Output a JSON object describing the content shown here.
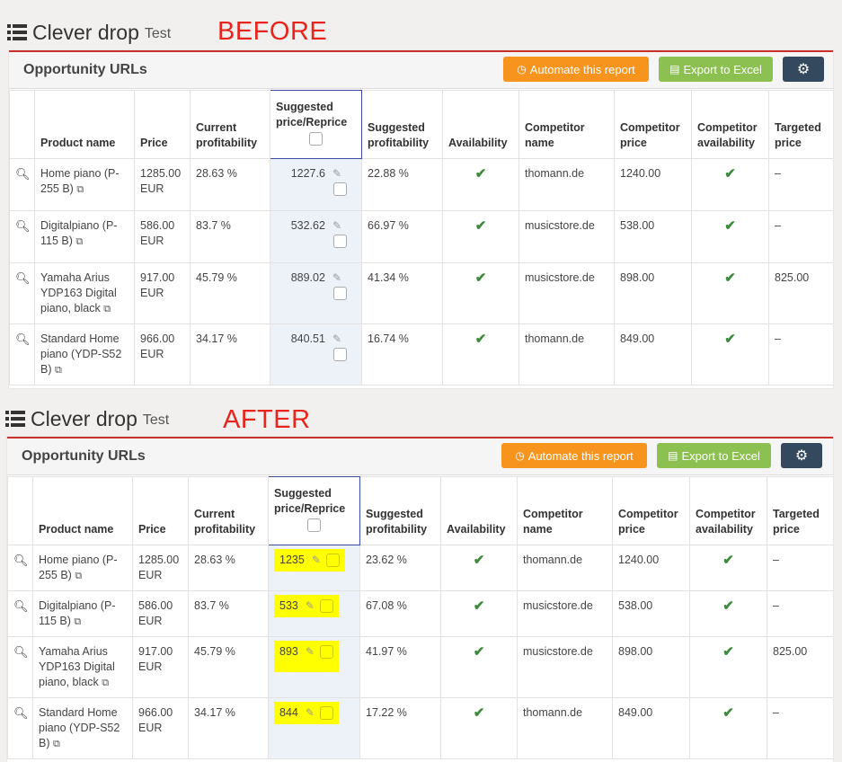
{
  "sections": [
    {
      "tag": "BEFORE",
      "app_title": "Clever drop",
      "app_subtitle": "Test",
      "panel_title": "Opportunity URLs",
      "automate_label": "Automate this report",
      "export_label": "Export to Excel",
      "headers": {
        "product": "Product name",
        "price": "Price",
        "current": "Current profitability",
        "suggested": "Suggested price/Reprice",
        "sugprof": "Suggested profitability",
        "availability": "Availability",
        "competitor": "Competitor name",
        "comp_price": "Competitor price",
        "comp_avail": "Competitor availability",
        "targeted": "Targeted price"
      },
      "rows": [
        {
          "product": "Home piano (P-255 B)",
          "price": "1285.00 EUR",
          "current": "28.63 %",
          "suggested": "1227.6",
          "sugprof": "22.88 %",
          "competitor": "thomann.de",
          "comp_price": "1240.00",
          "targeted": "–"
        },
        {
          "product": "Digitalpiano (P-115 B)",
          "price": "586.00 EUR",
          "current": "83.7 %",
          "suggested": "532.62",
          "sugprof": "66.97 %",
          "competitor": "musicstore.de",
          "comp_price": "538.00",
          "targeted": "–"
        },
        {
          "product": "Yamaha Arius YDP163 Digital piano, black",
          "price": "917.00 EUR",
          "current": "45.79 %",
          "suggested": "889.02",
          "sugprof": "41.34 %",
          "competitor": "musicstore.de",
          "comp_price": "898.00",
          "targeted": "825.00"
        },
        {
          "product": "Standard Home piano (YDP-S52 B)",
          "price": "966.00 EUR",
          "current": "34.17 %",
          "suggested": "840.51",
          "sugprof": "16.74 %",
          "competitor": "thomann.de",
          "comp_price": "849.00",
          "targeted": "–"
        }
      ]
    },
    {
      "tag": "AFTER",
      "app_title": "Clever drop",
      "app_subtitle": "Test",
      "panel_title": "Opportunity URLs",
      "automate_label": "Automate this report",
      "export_label": "Export to Excel",
      "headers": {
        "product": "Product name",
        "price": "Price",
        "current": "Current profitability",
        "suggested": "Suggested price/Reprice",
        "sugprof": "Suggested profitability",
        "availability": "Availability",
        "competitor": "Competitor name",
        "comp_price": "Competitor price",
        "comp_avail": "Competitor availability",
        "targeted": "Targeted price"
      },
      "rows": [
        {
          "product": "Home piano (P-255 B)",
          "price": "1285.00 EUR",
          "current": "28.63 %",
          "suggested": "1235",
          "sugprof": "23.62 %",
          "competitor": "thomann.de",
          "comp_price": "1240.00",
          "targeted": "–"
        },
        {
          "product": "Digitalpiano (P-115 B)",
          "price": "586.00 EUR",
          "current": "83.7 %",
          "suggested": "533",
          "sugprof": "67.08 %",
          "competitor": "musicstore.de",
          "comp_price": "538.00",
          "targeted": "–"
        },
        {
          "product": "Yamaha Arius YDP163 Digital piano, black",
          "price": "917.00 EUR",
          "current": "45.79 %",
          "suggested": "893",
          "sugprof": "41.97 %",
          "competitor": "musicstore.de",
          "comp_price": "898.00",
          "targeted": "825.00"
        },
        {
          "product": "Standard Home piano (YDP-S52 B)",
          "price": "966.00 EUR",
          "current": "34.17 %",
          "suggested": "844",
          "sugprof": "17.22 %",
          "competitor": "thomann.de",
          "comp_price": "849.00",
          "targeted": "–"
        }
      ]
    }
  ],
  "icons": {
    "list": "list-icon",
    "search": "search-icon",
    "edit": "edit-icon",
    "external": "external-link-icon",
    "check": "check-icon",
    "gear": "gear-icon",
    "clock": "clock-icon",
    "excel": "excel-icon"
  },
  "colors": {
    "tag": "#e8241c",
    "automate": "#f7941d",
    "export": "#8cc152",
    "settings": "#34495e",
    "highlight": "#ffff00",
    "suggested_col": "#edf2f9"
  }
}
